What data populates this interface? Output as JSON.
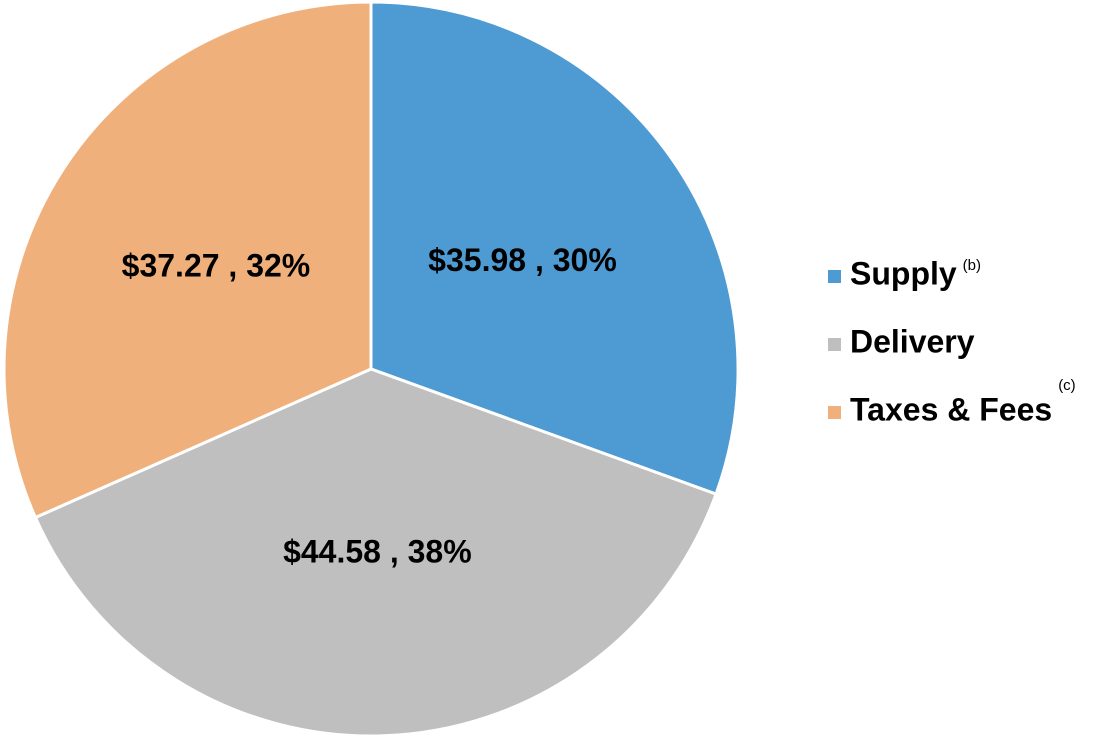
{
  "chart_data": {
    "type": "pie",
    "categories": [
      "Supply",
      "Delivery",
      "Taxes & Fees"
    ],
    "category_notes": [
      "(b)",
      null,
      "(c)"
    ],
    "values": [
      35.98,
      44.58,
      37.27
    ],
    "value_labels": [
      "$35.98 , 30%",
      "$44.58 , 38%",
      "$37.27 , 32%"
    ],
    "colors": [
      "#4e9bd4",
      "#bfbfbf",
      "#f0b07b"
    ],
    "legend": "right"
  }
}
